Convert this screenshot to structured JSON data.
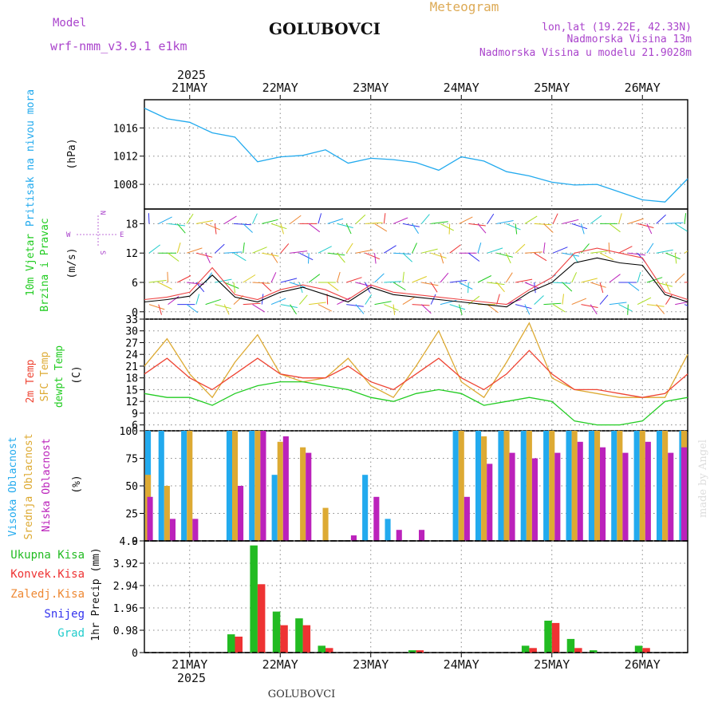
{
  "header": {
    "model_label": "Model",
    "model_name": "wrf-nmm_v3.9.1 e1km",
    "station": "GOLUBOVCI",
    "product": "Meteogram",
    "lonlat": "lon,lat (19.22E, 42.33N)",
    "elev": "Nadmorska Visina 13m",
    "model_elev": "Nadmorska Visina u modelu 21.9028m"
  },
  "footer": {
    "station": "GOLUBOVCI",
    "credit": "made by Angel"
  },
  "colors": {
    "pressure": "#22aaee",
    "wind_speed": "#000000",
    "wind_gust": "#ee4444",
    "t2m": "#ee4433",
    "sfc": "#ddaa33",
    "dewpt": "#22cc22",
    "high": "#22aaee",
    "mid": "#ddaa33",
    "low": "#bb22bb",
    "total": "#22bb22",
    "conv": "#ee3333",
    "frz": "#ee8833",
    "snow": "#3333ee",
    "graup": "#22cccc"
  },
  "chart_data": [
    {
      "type": "line",
      "name": "pressure",
      "ylabel": "Pritisak na nivou mora",
      "unit": "(hPa)",
      "ylim": [
        1004.5,
        1020
      ],
      "yticks": [
        1008,
        1012,
        1016
      ],
      "x_start": "2025-05-20 12:00",
      "x_end": "2025-05-26 12:00",
      "x_days": [
        "21MAY",
        "22MAY",
        "23MAY",
        "24MAY",
        "25MAY",
        "26MAY"
      ],
      "x_year": "2025",
      "x": [
        "2025-05-20 12:00",
        "2025-05-20 18:00",
        "2025-05-21 00:00",
        "2025-05-21 06:00",
        "2025-05-21 12:00",
        "2025-05-21 18:00",
        "2025-05-22 00:00",
        "2025-05-22 06:00",
        "2025-05-22 12:00",
        "2025-05-22 18:00",
        "2025-05-23 00:00",
        "2025-05-23 06:00",
        "2025-05-23 12:00",
        "2025-05-23 18:00",
        "2025-05-24 00:00",
        "2025-05-24 06:00",
        "2025-05-24 12:00",
        "2025-05-24 18:00",
        "2025-05-25 00:00",
        "2025-05-25 06:00",
        "2025-05-25 12:00",
        "2025-05-25 18:00",
        "2025-05-26 00:00",
        "2025-05-26 06:00",
        "2025-05-26 12:00"
      ],
      "values": [
        1018.8,
        1017.3,
        1016.8,
        1015.3,
        1014.7,
        1011.2,
        1011.9,
        1012.1,
        1012.9,
        1011.0,
        1011.7,
        1011.5,
        1011.1,
        1010.0,
        1011.9,
        1011.3,
        1009.8,
        1009.2,
        1008.3,
        1007.9,
        1008.0,
        1006.9,
        1005.8,
        1005.5,
        1008.8
      ]
    },
    {
      "type": "line",
      "name": "wind",
      "ylabel_lines": [
        "10m Vjetar",
        "Brzina i Pravac"
      ],
      "unit": "(m/s)",
      "compass": {
        "n": "N",
        "w": "W",
        "e": "E",
        "s": "S"
      },
      "ylim": [
        -1.5,
        21
      ],
      "yticks": [
        0,
        6,
        12,
        18
      ],
      "series": [
        {
          "name": "speed",
          "values": [
            2.0,
            2.5,
            3.2,
            7.5,
            3.0,
            2.0,
            4.0,
            5.0,
            3.5,
            2.0,
            5.0,
            3.5,
            3.0,
            2.5,
            2.0,
            1.5,
            1.0,
            4.0,
            6.0,
            10.0,
            11.0,
            10.0,
            9.5,
            3.5,
            2.0
          ]
        },
        {
          "name": "gust",
          "values": [
            2.5,
            3.0,
            4.0,
            9.0,
            3.5,
            2.5,
            4.5,
            5.5,
            4.5,
            2.5,
            5.5,
            4.0,
            3.5,
            3.0,
            2.5,
            2.0,
            1.5,
            4.5,
            7.0,
            12.0,
            13.0,
            12.0,
            11.0,
            4.0,
            2.5
          ]
        }
      ]
    },
    {
      "type": "line",
      "name": "temperature",
      "ylabel_lines": [
        "2m Temp",
        "SFC Temp",
        "dewpt Temp"
      ],
      "unit": "(C)",
      "ylim": [
        4.5,
        33
      ],
      "yticks": [
        6,
        9,
        12,
        15,
        18,
        21,
        24,
        27,
        30,
        33
      ],
      "series": [
        {
          "name": "2m Temp",
          "values": [
            19,
            23,
            18,
            15,
            19,
            23,
            19,
            18,
            18,
            21,
            17,
            15,
            19,
            23,
            18,
            15,
            19,
            25,
            19,
            15,
            15,
            14,
            13,
            14,
            19
          ]
        },
        {
          "name": "SFC Temp",
          "values": [
            21,
            28,
            19,
            13,
            22,
            29,
            19,
            17,
            18,
            23,
            16,
            13,
            21,
            30,
            17,
            13,
            22,
            32,
            18,
            15,
            14,
            13,
            13,
            13,
            24
          ]
        },
        {
          "name": "dewpt Temp",
          "values": [
            14,
            13,
            13,
            11,
            14,
            16,
            17,
            17,
            16,
            15,
            13,
            12,
            14,
            15,
            14,
            11,
            12,
            13,
            12,
            7,
            6,
            6,
            7,
            12,
            13
          ]
        }
      ]
    },
    {
      "type": "bar",
      "name": "cloud",
      "ylabel_lines": [
        "Visoka Oblacnost",
        "Srednja Oblacnost",
        "Niska Oblacnost"
      ],
      "unit": "(%)",
      "ylim": [
        0,
        100
      ],
      "yticks": [
        0,
        25,
        50,
        75,
        100
      ],
      "series": [
        {
          "name": "Visoka Oblacnost",
          "values": [
            100,
            100,
            100,
            0,
            100,
            100,
            60,
            0,
            0,
            0,
            60,
            20,
            0,
            0,
            100,
            100,
            100,
            100,
            100,
            100,
            100,
            100,
            100,
            100,
            100
          ]
        },
        {
          "name": "Srednja Oblacnost",
          "values": [
            60,
            50,
            100,
            0,
            100,
            100,
            90,
            85,
            30,
            0,
            0,
            0,
            0,
            0,
            100,
            95,
            100,
            100,
            100,
            100,
            100,
            100,
            100,
            100,
            100
          ]
        },
        {
          "name": "Niska Oblacnost",
          "values": [
            40,
            20,
            20,
            0,
            50,
            100,
            95,
            80,
            0,
            5,
            40,
            10,
            10,
            0,
            40,
            70,
            80,
            75,
            80,
            90,
            85,
            80,
            90,
            80,
            85
          ]
        }
      ]
    },
    {
      "type": "bar",
      "name": "precip",
      "legend": [
        "Ukupna Kisa",
        "Konvek.Kisa",
        "Zaledj.Kisa",
        "Snijeg",
        "Grad"
      ],
      "unit": "1hr Precip (mm)",
      "ylim": [
        0,
        4.9
      ],
      "yticks": [
        0,
        0.98,
        1.96,
        2.94,
        3.92,
        4.9
      ],
      "tick_labels": [
        "0",
        "0.98",
        "1.96",
        "2.94",
        "3.92",
        "4.9"
      ],
      "series": [
        {
          "name": "Ukupna Kisa",
          "values": [
            0,
            0,
            0,
            0,
            0.8,
            4.7,
            1.8,
            1.5,
            0.3,
            0,
            0,
            0,
            0.1,
            0,
            0,
            0,
            0,
            0.3,
            1.4,
            0.6,
            0.1,
            0,
            0.3,
            0,
            0
          ]
        },
        {
          "name": "Konvek.Kisa",
          "values": [
            0,
            0,
            0,
            0,
            0.7,
            3.0,
            1.2,
            1.2,
            0.2,
            0,
            0,
            0,
            0.1,
            0,
            0,
            0,
            0,
            0.2,
            1.3,
            0.2,
            0,
            0,
            0.2,
            0,
            0
          ]
        }
      ]
    }
  ]
}
